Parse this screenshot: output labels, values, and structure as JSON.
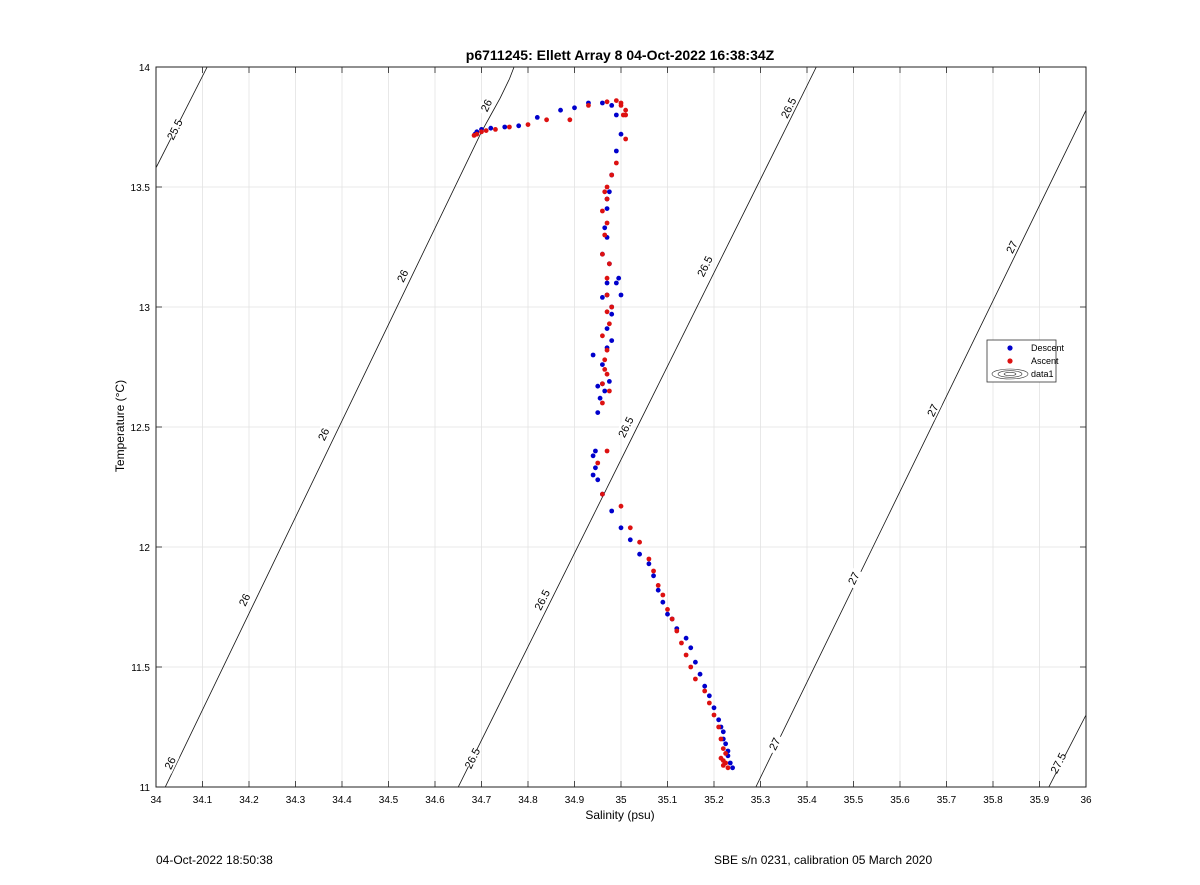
{
  "chart_data": {
    "type": "scatter",
    "title": "p6711245: Ellett Array 8 04-Oct-2022 16:38:34Z",
    "xlabel": "Salinity (psu)",
    "ylabel": "Temperature (°C)",
    "xlim": [
      34,
      36
    ],
    "ylim": [
      11,
      14
    ],
    "x_ticks": [
      "34",
      "34.1",
      "34.2",
      "34.3",
      "34.4",
      "34.5",
      "34.6",
      "34.7",
      "34.8",
      "34.9",
      "35",
      "35.1",
      "35.2",
      "35.3",
      "35.4",
      "35.5",
      "35.6",
      "35.7",
      "35.8",
      "35.9",
      "36"
    ],
    "y_ticks": [
      "11",
      "11.5",
      "12",
      "12.5",
      "13",
      "13.5",
      "14"
    ],
    "grid": true,
    "legend_position": "right",
    "legend": [
      "Descent",
      "Ascent",
      "data1"
    ],
    "series": [
      {
        "name": "Descent",
        "color": "#0000cc",
        "x": [
          34.686,
          34.69,
          34.7,
          34.72,
          34.75,
          34.78,
          34.82,
          34.87,
          34.9,
          34.93,
          34.96,
          34.98,
          34.99,
          35.0,
          34.99,
          34.98,
          34.975,
          34.97,
          34.97,
          34.965,
          34.97,
          34.96,
          34.975,
          34.97,
          34.97,
          34.96,
          34.98,
          34.99,
          34.995,
          35.0,
          34.98,
          34.97,
          34.98,
          34.97,
          34.96,
          34.975,
          34.96,
          34.95,
          34.965,
          34.955,
          34.95,
          34.94,
          34.945,
          34.94,
          34.945,
          34.94,
          34.95,
          34.96,
          34.98,
          35.0,
          35.02,
          35.04,
          35.06,
          35.07,
          35.08,
          35.09,
          35.1,
          35.11,
          35.12,
          35.14,
          35.15,
          35.16,
          35.17,
          35.18,
          35.19,
          35.2,
          35.21,
          35.215,
          35.22,
          35.22,
          35.225,
          35.23,
          35.23,
          35.235,
          35.24
        ],
        "y": [
          13.72,
          13.73,
          13.74,
          13.745,
          13.75,
          13.755,
          13.79,
          13.82,
          13.83,
          13.85,
          13.85,
          13.84,
          13.8,
          13.72,
          13.65,
          13.55,
          13.48,
          13.45,
          13.41,
          13.33,
          13.29,
          13.22,
          13.18,
          13.1,
          13.05,
          13.04,
          13.0,
          13.1,
          13.12,
          13.05,
          12.97,
          12.91,
          12.86,
          12.83,
          12.76,
          12.69,
          12.68,
          12.67,
          12.65,
          12.62,
          12.56,
          12.8,
          12.4,
          12.38,
          12.33,
          12.3,
          12.28,
          12.22,
          12.15,
          12.08,
          12.03,
          11.97,
          11.93,
          11.88,
          11.82,
          11.77,
          11.72,
          11.7,
          11.66,
          11.62,
          11.58,
          11.52,
          11.47,
          11.42,
          11.38,
          11.33,
          11.28,
          11.25,
          11.23,
          11.2,
          11.18,
          11.15,
          11.13,
          11.1,
          11.08
        ]
      },
      {
        "name": "Ascent",
        "color": "#dd1111",
        "x": [
          34.684,
          34.69,
          34.7,
          34.71,
          34.73,
          34.76,
          34.8,
          34.84,
          34.89,
          34.93,
          34.97,
          34.99,
          35.0,
          35.01,
          35.01,
          35.0,
          35.005,
          35.01,
          34.99,
          34.98,
          34.97,
          34.965,
          34.97,
          34.96,
          34.97,
          34.965,
          34.96,
          34.975,
          34.97,
          34.97,
          34.98,
          34.97,
          34.975,
          34.96,
          34.97,
          34.965,
          34.965,
          34.97,
          34.96,
          34.975,
          34.96,
          34.95,
          34.96,
          34.97,
          35.0,
          35.02,
          35.04,
          35.06,
          35.07,
          35.08,
          35.09,
          35.1,
          35.11,
          35.12,
          35.13,
          35.14,
          35.15,
          35.16,
          35.18,
          35.19,
          35.2,
          35.21,
          35.215,
          35.22,
          35.225,
          35.215,
          35.22,
          35.225,
          35.22,
          35.23
        ],
        "y": [
          13.715,
          13.72,
          13.73,
          13.735,
          13.74,
          13.75,
          13.76,
          13.78,
          13.78,
          13.84,
          13.855,
          13.86,
          13.84,
          13.82,
          13.8,
          13.85,
          13.8,
          13.7,
          13.6,
          13.55,
          13.5,
          13.48,
          13.45,
          13.4,
          13.35,
          13.3,
          13.22,
          13.18,
          13.12,
          13.05,
          13.0,
          12.98,
          12.93,
          12.88,
          12.82,
          12.78,
          12.74,
          12.72,
          12.68,
          12.65,
          12.6,
          12.35,
          12.22,
          12.4,
          12.17,
          12.08,
          12.02,
          11.95,
          11.9,
          11.84,
          11.8,
          11.74,
          11.7,
          11.65,
          11.6,
          11.55,
          11.5,
          11.45,
          11.4,
          11.35,
          11.3,
          11.25,
          11.2,
          11.16,
          11.14,
          11.12,
          11.11,
          11.1,
          11.09,
          11.08
        ]
      }
    ],
    "contours": {
      "name": "data1",
      "description_levels": [
        25.5,
        26,
        26.5,
        27,
        27.5
      ],
      "lines": [
        {
          "level": "25.5",
          "points": [
            [
              34.0,
              13.58
            ],
            [
              34.11,
              14.0
            ]
          ],
          "labels": [
            [
              34.04,
              13.74
            ]
          ]
        },
        {
          "level": "26",
          "points": [
            [
              34.0,
              10.92
            ],
            [
              34.7,
              13.73
            ]
          ],
          "labels": [
            [
              34.03,
              11.1
            ],
            [
              34.19,
              11.78
            ],
            [
              34.36,
              12.47
            ],
            [
              34.53,
              13.13
            ],
            [
              34.71,
              13.84
            ]
          ]
        },
        {
          "level": "26",
          "points": [
            [
              34.7,
              13.73
            ],
            [
              34.72,
              13.8
            ],
            [
              34.74,
              13.87
            ],
            [
              34.76,
              13.95
            ],
            [
              34.77,
              14.0
            ]
          ],
          "labels": []
        },
        {
          "level": "26.5",
          "points": [
            [
              34.65,
              11.0
            ],
            [
              35.42,
              14.0
            ]
          ],
          "labels": [
            [
              34.68,
              11.12
            ],
            [
              34.83,
              11.78
            ],
            [
              35.01,
              12.5
            ],
            [
              35.18,
              13.17
            ],
            [
              35.36,
              13.83
            ]
          ]
        },
        {
          "level": "27",
          "points": [
            [
              35.29,
              11.0
            ],
            [
              36.0,
              13.82
            ]
          ],
          "labels": [
            [
              35.33,
              11.18
            ],
            [
              35.5,
              11.87
            ],
            [
              35.67,
              12.57
            ],
            [
              35.84,
              13.25
            ]
          ]
        },
        {
          "level": "27.5",
          "points": [
            [
              35.92,
              11.0
            ],
            [
              36.0,
              11.3
            ]
          ],
          "labels": [
            [
              35.94,
              11.1
            ]
          ]
        }
      ]
    }
  },
  "footer": {
    "left": "04-Oct-2022 18:50:38",
    "right": "SBE s/n 0231, calibration 05 March 2020"
  }
}
